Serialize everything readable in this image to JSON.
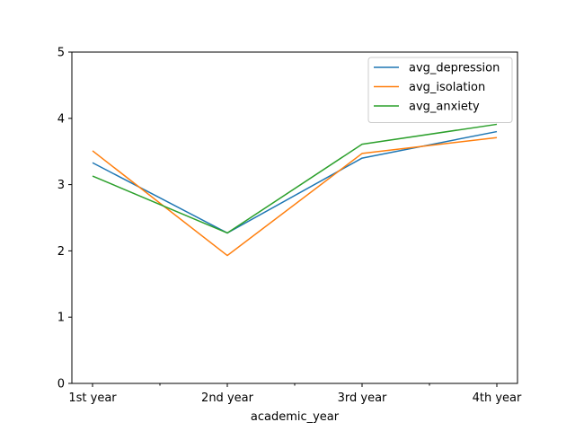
{
  "chart_data": {
    "type": "line",
    "title": "",
    "xlabel": "academic_year",
    "ylabel": "",
    "categories": [
      "1st year",
      "2nd year",
      "3rd year",
      "4th year"
    ],
    "ylim": [
      0,
      5
    ],
    "yticks": [
      0,
      1,
      2,
      3,
      4,
      5
    ],
    "grid": false,
    "legend_position": "top-right",
    "series": [
      {
        "name": "avg_depression",
        "color": "#1f77b4",
        "values": [
          3.33,
          2.27,
          3.4,
          3.8
        ]
      },
      {
        "name": "avg_isolation",
        "color": "#ff7f0e",
        "values": [
          3.51,
          1.93,
          3.47,
          3.71
        ]
      },
      {
        "name": "avg_anxiety",
        "color": "#2ca02c",
        "values": [
          3.13,
          2.27,
          3.61,
          3.91
        ]
      }
    ]
  }
}
